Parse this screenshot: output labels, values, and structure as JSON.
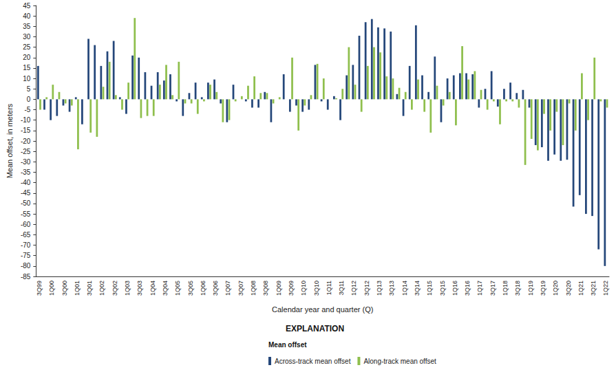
{
  "chart_data": {
    "type": "bar",
    "x_label": "Calendar year and quarter (Q)",
    "y_label": "Mean offset, in meters",
    "annotations": [
      "EXPLANATION",
      "Mean offset"
    ],
    "categories": [
      "3Q99",
      null,
      "1Q00",
      null,
      "3Q00",
      null,
      "1Q01",
      null,
      "3Q01",
      null,
      "1Q02",
      null,
      "3Q02",
      null,
      "1Q03",
      null,
      "3Q03",
      null,
      "1Q04",
      null,
      "3Q04",
      null,
      "1Q05",
      null,
      "3Q05",
      null,
      "1Q06",
      null,
      "3Q06",
      null,
      "1Q07",
      null,
      "3Q07",
      null,
      "1Q08",
      null,
      "3Q08",
      null,
      "1Q09",
      null,
      "3Q09",
      null,
      "1Q10",
      null,
      "3Q10",
      null,
      "1Q11",
      null,
      "3Q11",
      null,
      "1Q12",
      null,
      "3Q12",
      null,
      "1Q13",
      null,
      "3Q13",
      null,
      "1Q14",
      null,
      "3Q14",
      null,
      "1Q15",
      null,
      "3Q15",
      null,
      "1Q16",
      null,
      "3Q16",
      null,
      "1Q17",
      null,
      "3Q17",
      null,
      "1Q18",
      null,
      "3Q18",
      null,
      "1Q19",
      null,
      "3Q19",
      null,
      "1Q20",
      null,
      "3Q20",
      null,
      "1Q21",
      null,
      "3Q21",
      null,
      "1Q22"
    ],
    "series": [
      {
        "name": "Across-track mean offset",
        "color": "#25477a",
        "values": [
          16,
          -5,
          -10,
          -8,
          -3,
          -6,
          1,
          -12,
          29,
          26,
          16,
          23,
          28,
          1,
          -7,
          21,
          20,
          13,
          6.5,
          13,
          9,
          12,
          -1,
          -8,
          3,
          8,
          1,
          8,
          9.5,
          -2,
          -11,
          7,
          0,
          -1,
          -4,
          -4,
          3.5,
          -11,
          0,
          12,
          -6,
          -3,
          -6,
          -5,
          16.5,
          -1,
          -5,
          1.5,
          -10,
          11.5,
          16.5,
          30.5,
          37,
          38.5,
          34.5,
          34,
          32.5,
          2.5,
          -8,
          16,
          35.5,
          11.5,
          3.5,
          20.5,
          -11,
          10,
          11.5,
          12.5,
          12.5,
          12,
          -4,
          5,
          13.5,
          -3.5,
          5,
          8,
          3,
          4.5,
          -4,
          -22,
          -23,
          -29.5,
          -26.5,
          -29.5,
          -29,
          -51.5,
          -46,
          -55,
          -56,
          -72,
          -80
        ]
      },
      {
        "name": "Along-track mean offset",
        "color": "#8fbf4d",
        "values": [
          -5,
          1,
          7,
          3.5,
          -2,
          -3,
          -24,
          0,
          -16,
          -18,
          6,
          18,
          2,
          -5,
          8,
          39,
          -9,
          -8,
          -8,
          7,
          16.5,
          2,
          18,
          -2,
          -2,
          -7,
          -1,
          7,
          3.5,
          -11,
          -10,
          -1,
          1.5,
          6.5,
          11,
          3,
          3,
          -2,
          1,
          0,
          20,
          -15,
          -3,
          2,
          17,
          10,
          0,
          0.5,
          5,
          25,
          7,
          -6,
          16,
          25,
          22.5,
          11,
          10,
          5.5,
          3.5,
          -5,
          9.5,
          -6,
          -16,
          6.5,
          -3,
          3.5,
          -12.5,
          25.5,
          9.5,
          13.5,
          4.5,
          -5,
          -1,
          -12,
          -1,
          -1,
          -4,
          -31.5,
          -19,
          -24.5,
          -7,
          -15,
          -6,
          -22,
          -2,
          -15,
          12.5,
          -10,
          20,
          -1,
          -4
        ]
      }
    ],
    "ylim": [
      -85,
      45
    ],
    "yticks": [
      -85,
      -80,
      -75,
      -70,
      -65,
      -60,
      -55,
      -50,
      -45,
      -40,
      -35,
      -30,
      -25,
      -20,
      -15,
      -10,
      -5,
      0,
      5,
      10,
      15,
      20,
      25,
      30,
      35,
      40,
      45
    ],
    "grid": false,
    "legend": "bottom"
  }
}
